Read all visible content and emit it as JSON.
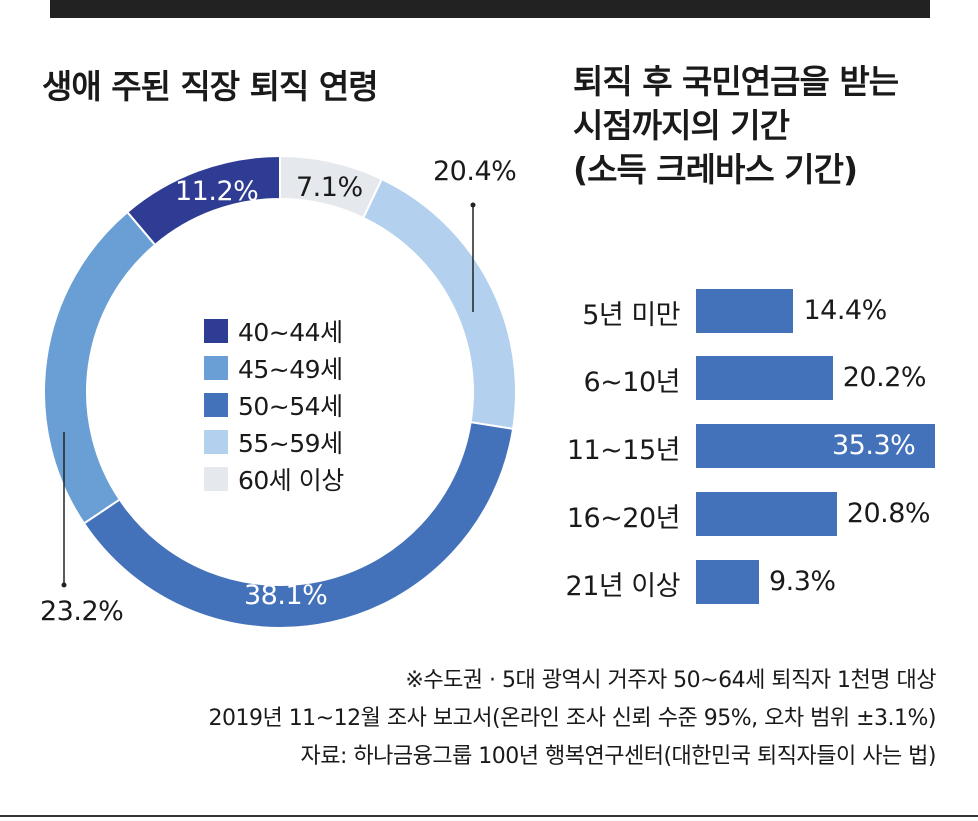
{
  "left_chart": {
    "title": "생애 주된 직장 퇴직 연령"
  },
  "right_chart": {
    "title_lines": [
      "퇴직 후 국민연금을 받는",
      "시점까지의 기간",
      "(소득 크레바스 기간)"
    ]
  },
  "chart_data": [
    {
      "type": "pie",
      "title": "생애 주된 직장 퇴직 연령",
      "style": "donut",
      "categories": [
        "40~44세",
        "45~49세",
        "50~54세",
        "55~59세",
        "60세 이상"
      ],
      "values": [
        11.2,
        23.2,
        38.1,
        20.4,
        7.1
      ],
      "labels": [
        "11.2%",
        "23.2%",
        "38.1%",
        "20.4%",
        "7.1%"
      ],
      "colors": [
        "#2e3c93",
        "#6a9fd6",
        "#4472ba",
        "#b3d1ee",
        "#e5e9ee"
      ]
    },
    {
      "type": "bar",
      "orientation": "horizontal",
      "title": "퇴직 후 국민연금을 받는 시점까지의 기간 (소득 크레바스 기간)",
      "categories": [
        "5년 미만",
        "6~10년",
        "11~15년",
        "16~20년",
        "21년 이상"
      ],
      "values": [
        14.4,
        20.2,
        35.3,
        20.8,
        9.3
      ],
      "labels": [
        "14.4%",
        "20.2%",
        "35.3%",
        "20.8%",
        "9.3%"
      ],
      "xlim": [
        0,
        35.3
      ],
      "color": "#4472ba"
    }
  ],
  "notes": [
    "※수도권 · 5대 광역시 거주자 50~64세 퇴직자 1천명 대상",
    "2019년 11~12월 조사 보고서(온라인 조사 신뢰 수준 95%, 오차 범위 ±3.1%)",
    "자료: 하나금융그룹 100년 행복연구센터(대한민국 퇴직자들이 사는 법)"
  ]
}
